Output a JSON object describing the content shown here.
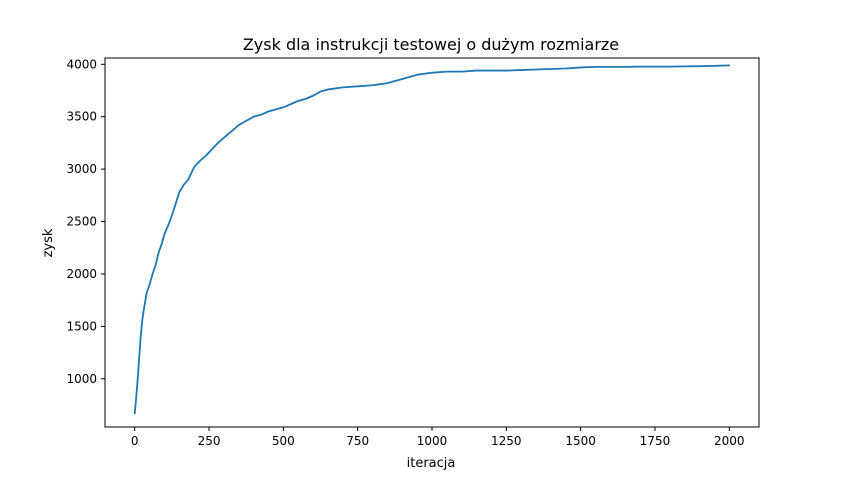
{
  "chart_data": {
    "type": "line",
    "title": "Zysk dla instrukcji testowej o dużym rozmiarze",
    "xlabel": "iteracja",
    "ylabel": "zysk",
    "xlim": [
      -100,
      2100
    ],
    "ylim": [
      540,
      4060
    ],
    "xticks": [
      0,
      250,
      500,
      750,
      1000,
      1250,
      1500,
      1750,
      2000
    ],
    "yticks": [
      1000,
      1500,
      2000,
      2500,
      3000,
      3500,
      4000
    ],
    "grid": false,
    "colors": {
      "series": "#1f77b4"
    },
    "series": [
      {
        "x": [
          0,
          5,
          10,
          15,
          20,
          25,
          30,
          40,
          50,
          60,
          70,
          80,
          90,
          100,
          115,
          130,
          150,
          165,
          180,
          200,
          220,
          240,
          260,
          280,
          300,
          325,
          350,
          375,
          400,
          425,
          450,
          475,
          500,
          525,
          550,
          575,
          600,
          625,
          650,
          700,
          750,
          800,
          850,
          900,
          950,
          1000,
          1050,
          1100,
          1150,
          1200,
          1250,
          1300,
          1350,
          1400,
          1450,
          1500,
          1550,
          1600,
          1650,
          1700,
          1750,
          1800,
          1850,
          1900,
          1950,
          2000
        ],
        "y": [
          670,
          820,
          1000,
          1200,
          1400,
          1550,
          1650,
          1820,
          1900,
          2000,
          2080,
          2200,
          2280,
          2380,
          2480,
          2600,
          2780,
          2850,
          2900,
          3020,
          3080,
          3130,
          3190,
          3250,
          3300,
          3360,
          3420,
          3460,
          3500,
          3520,
          3550,
          3570,
          3590,
          3620,
          3650,
          3670,
          3700,
          3740,
          3760,
          3780,
          3790,
          3800,
          3820,
          3860,
          3900,
          3920,
          3930,
          3930,
          3940,
          3940,
          3940,
          3945,
          3950,
          3955,
          3960,
          3970,
          3975,
          3975,
          3975,
          3978,
          3978,
          3978,
          3980,
          3982,
          3985,
          3990
        ]
      }
    ]
  }
}
